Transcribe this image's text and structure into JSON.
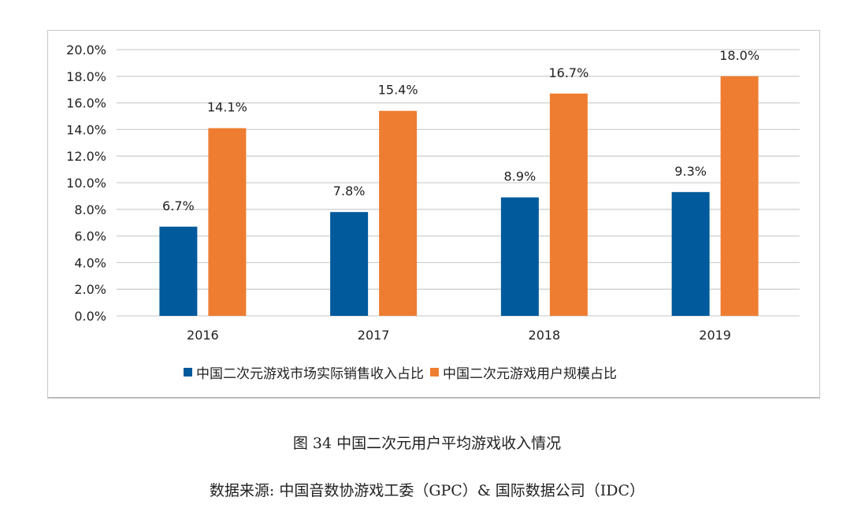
{
  "chart_data": {
    "type": "bar",
    "categories": [
      "2016",
      "2017",
      "2018",
      "2019"
    ],
    "series": [
      {
        "name": "中国二次元游戏市场实际销售收入占比",
        "values": [
          6.7,
          7.8,
          8.9,
          9.3
        ],
        "labels": [
          "6.7%",
          "7.8%",
          "8.9%",
          "9.3%"
        ],
        "color": "#005a9c"
      },
      {
        "name": "中国二次元游戏用户规模占比",
        "values": [
          14.1,
          15.4,
          16.7,
          18.0
        ],
        "labels": [
          "14.1%",
          "15.4%",
          "16.7%",
          "18.0%"
        ],
        "color": "#ee7d31"
      }
    ],
    "ylim": [
      0,
      20
    ],
    "yticks": [
      "0.0%",
      "2.0%",
      "4.0%",
      "6.0%",
      "8.0%",
      "10.0%",
      "12.0%",
      "14.0%",
      "16.0%",
      "18.0%",
      "20.0%"
    ],
    "grid": true,
    "legend": "bottom",
    "title": "图 34 中国二次元用户平均游戏收入情况",
    "source": "数据来源: 中国音数协游戏工委（GPC）& 国际数据公司（IDC）"
  }
}
